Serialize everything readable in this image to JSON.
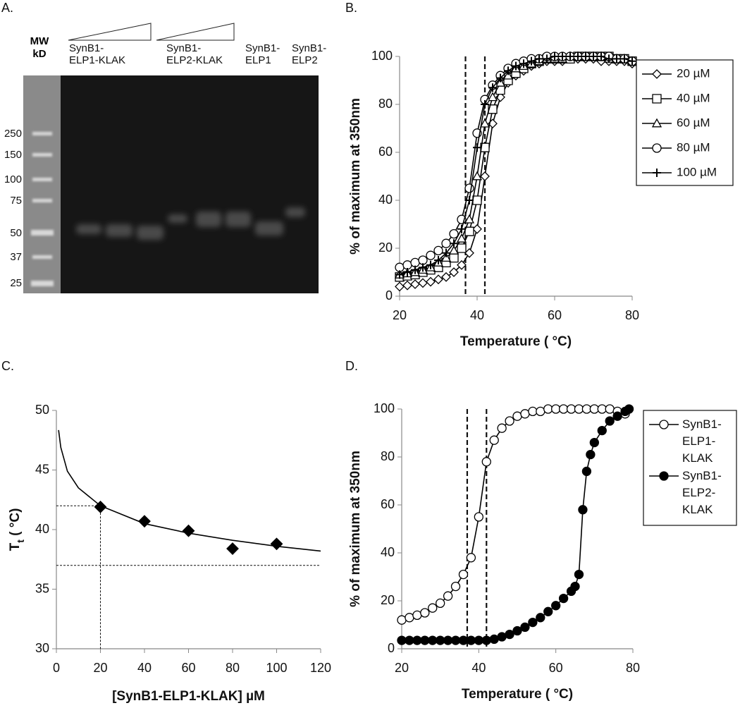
{
  "gel": {
    "label": "A.",
    "mw_label": "MW kD",
    "lanes": [
      "SynB1-ELP1-KLAK",
      "SynB1-ELP2-KLAK",
      "SynB1-ELP1",
      "SynB1-ELP2"
    ],
    "markers": [
      250,
      150,
      100,
      75,
      50,
      37,
      25
    ]
  },
  "chart_data": [
    {
      "type": "line",
      "label": "B.",
      "xlabel": "Temperature ( °C)",
      "ylabel": "% of maximum at 350nm",
      "xlim": [
        20,
        80
      ],
      "xticks": [
        20,
        40,
        60,
        80
      ],
      "ylim": [
        0,
        100
      ],
      "yticks": [
        0,
        20,
        40,
        60,
        80,
        100
      ],
      "vlines": [
        37,
        42
      ],
      "x": [
        20,
        22,
        24,
        26,
        28,
        30,
        32,
        34,
        36,
        38,
        40,
        42,
        44,
        46,
        48,
        50,
        52,
        54,
        56,
        58,
        60,
        62,
        64,
        66,
        68,
        70,
        72,
        74,
        76,
        78,
        80
      ],
      "series": [
        {
          "name": "20 µM",
          "marker": "diamond",
          "fill": "white",
          "color": "#000000",
          "line": true,
          "values": [
            4,
            4.5,
            5,
            5.5,
            6,
            7,
            8,
            10,
            13,
            18,
            28,
            50,
            72,
            83,
            89,
            92,
            94,
            96,
            97,
            98,
            98,
            98,
            99,
            99,
            99,
            99,
            98,
            98,
            98,
            98,
            97
          ]
        },
        {
          "name": "40 µM",
          "marker": "square",
          "fill": "white",
          "color": "#000000",
          "line": true,
          "values": [
            8,
            8.5,
            9,
            10,
            11,
            12,
            14,
            16,
            20,
            27,
            40,
            62,
            78,
            86,
            90,
            93,
            95,
            97,
            98,
            99,
            99,
            99,
            99,
            100,
            100,
            100,
            100,
            100,
            99,
            99,
            98
          ]
        },
        {
          "name": "60 µM",
          "marker": "triangle",
          "fill": "white",
          "color": "#000000",
          "line": true,
          "values": [
            9,
            9.5,
            10,
            11,
            12,
            14,
            16,
            19,
            24,
            32,
            50,
            72,
            83,
            89,
            92,
            95,
            96,
            97,
            98,
            99,
            99,
            99,
            100,
            100,
            100,
            100,
            100,
            99,
            99,
            99,
            98
          ]
        },
        {
          "name": "80 µM",
          "marker": "circle",
          "fill": "white",
          "color": "#000000",
          "line": true,
          "values": [
            12,
            13,
            14,
            15,
            17,
            19,
            22,
            26,
            32,
            45,
            68,
            82,
            88,
            92,
            95,
            97,
            98,
            99,
            99,
            100,
            100,
            100,
            100,
            100,
            100,
            100,
            100,
            100,
            99,
            99,
            98
          ]
        },
        {
          "name": "100 µM",
          "marker": "plus",
          "fill": "white",
          "color": "#000000",
          "line": true,
          "values": [
            9,
            10,
            11,
            12,
            13,
            15,
            18,
            22,
            28,
            40,
            62,
            80,
            87,
            91,
            94,
            96,
            97,
            98,
            99,
            99,
            100,
            100,
            100,
            100,
            100,
            100,
            100,
            99,
            99,
            99,
            98
          ]
        }
      ]
    },
    {
      "type": "scatter",
      "label": "C.",
      "xlabel": "[SynB1-ELP1-KLAK] µM",
      "ylabel": "T",
      "ylabel_sub": "t",
      "ylabel_unit": " ( °C)",
      "xlim": [
        0,
        120
      ],
      "xticks": [
        0,
        20,
        40,
        60,
        80,
        100,
        120
      ],
      "ylim": [
        30,
        50
      ],
      "yticks": [
        30,
        35,
        40,
        45,
        50
      ],
      "guides": [
        {
          "x": 20,
          "y": 42
        }
      ],
      "hlines": [
        37
      ],
      "series": [
        {
          "marker": "diamond",
          "fill": "black",
          "color": "#000000",
          "x": [
            20,
            40,
            60,
            80,
            100
          ],
          "values": [
            41.9,
            40.7,
            39.9,
            38.4,
            38.8
          ]
        },
        {
          "line": true,
          "color": "#000000",
          "x": [
            1,
            2,
            5,
            10,
            20,
            40,
            60,
            80,
            100,
            120
          ],
          "values": [
            48.35,
            46.9,
            44.9,
            43.5,
            42.0,
            40.5,
            39.7,
            39.1,
            38.6,
            38.2
          ]
        }
      ]
    },
    {
      "type": "line",
      "label": "D.",
      "xlabel": "Temperature ( °C)",
      "ylabel": "% of maximum at 350nm",
      "xlim": [
        20,
        80
      ],
      "xticks": [
        20,
        40,
        60,
        80
      ],
      "ylim": [
        0,
        100
      ],
      "yticks": [
        0,
        20,
        40,
        60,
        80,
        100
      ],
      "vlines": [
        37,
        42
      ],
      "series": [
        {
          "name": "SynB1-ELP1-KLAK",
          "marker": "circle",
          "fill": "white",
          "color": "#000000",
          "line": true,
          "x": [
            20,
            22,
            24,
            26,
            28,
            30,
            32,
            34,
            36,
            38,
            40,
            42,
            44,
            46,
            48,
            50,
            52,
            54,
            56,
            58,
            60,
            62,
            64,
            66,
            68,
            70,
            72,
            74,
            76,
            78
          ],
          "values": [
            12,
            13,
            14,
            15,
            17,
            19,
            22,
            26,
            31,
            38,
            55,
            78,
            87,
            92,
            95,
            97,
            98,
            99,
            99,
            100,
            100,
            100,
            100,
            100,
            100,
            100,
            100,
            100,
            99,
            98
          ]
        },
        {
          "name": "SynB1-ELP2-KLAK",
          "marker": "circle",
          "fill": "black",
          "color": "#000000",
          "line": true,
          "x": [
            20,
            22,
            24,
            26,
            28,
            30,
            32,
            34,
            36,
            38,
            40,
            42,
            44,
            46,
            48,
            50,
            52,
            54,
            56,
            58,
            60,
            62,
            64,
            65,
            66,
            67,
            68,
            69,
            70,
            72,
            74,
            76,
            78,
            79
          ],
          "values": [
            3.5,
            3.5,
            3.5,
            3.5,
            3.5,
            3.5,
            3.5,
            3.5,
            3.5,
            3.5,
            3.5,
            3.5,
            4,
            5,
            6,
            7.5,
            9,
            11,
            13,
            15.5,
            18,
            21,
            24,
            26,
            31,
            58,
            74,
            81,
            86,
            91,
            95,
            97,
            99,
            100
          ]
        }
      ]
    }
  ]
}
